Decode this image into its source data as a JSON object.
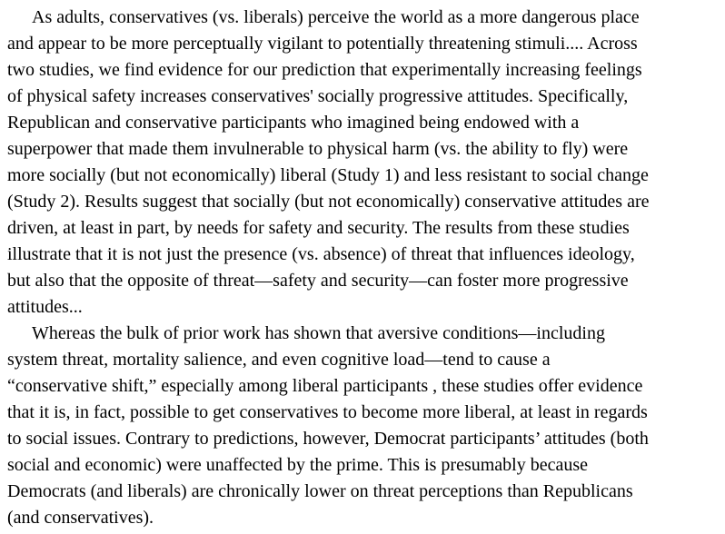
{
  "paragraphs": [
    {
      "lines": [
        "As adults, conservatives (vs. liberals) perceive the world as a more dangerous place",
        "and appear to be more perceptually vigilant to potentially threatening stimuli.... Across",
        "two studies, we find evidence for our prediction that experimentally increasing feelings",
        "of physical safety increases conservatives' socially progressive attitudes. Specifically,",
        "Republican and conservative participants who imagined being endowed with a",
        "superpower that made them invulnerable to physical harm (vs. the ability to fly) were",
        "more socially (but not economically) liberal (Study 1) and less resistant to social change",
        "(Study 2). Results suggest that socially (but not economically) conservative attitudes are",
        "driven, at least in part, by needs for safety and security. The results from these studies",
        "illustrate that it is not just the presence (vs. absence) of threat that influences ideology,",
        "but also that the opposite of threat—safety and security—can foster more progressive",
        "attitudes..."
      ]
    },
    {
      "lines": [
        "Whereas the bulk of prior work has shown that aversive conditions—including",
        "system threat, mortality salience, and even cognitive load—tend to cause a",
        "“conservative shift,” especially among liberal participants , these studies offer evidence",
        "that it is, in fact, possible to get conservatives to become more liberal, at least in regards",
        "to social issues. Contrary to predictions, however, Democrat participants’ attitudes (both",
        "social and economic) were unaffected by the prime. This is presumably because",
        "Democrats (and liberals) are chronically lower on threat perceptions than Republicans",
        "(and conservatives)."
      ]
    }
  ]
}
